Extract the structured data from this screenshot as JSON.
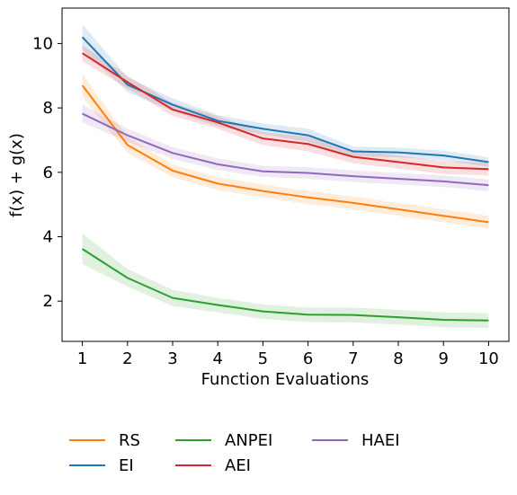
{
  "chart_data": {
    "type": "line",
    "xlabel": "Function Evaluations",
    "ylabel": "f(x) + g(x)",
    "xlim": [
      0.55,
      10.45
    ],
    "ylim": [
      0.75,
      11.1
    ],
    "x": [
      1,
      2,
      3,
      4,
      5,
      6,
      7,
      8,
      9,
      10
    ],
    "xticks": [
      1,
      2,
      3,
      4,
      5,
      6,
      7,
      8,
      9,
      10
    ],
    "yticks": [
      2,
      4,
      6,
      8,
      10
    ],
    "grid": false,
    "legend_position": "bottom",
    "series": [
      {
        "name": "RS",
        "color": "#ff7f0e",
        "values": [
          8.7,
          6.85,
          6.05,
          5.65,
          5.42,
          5.22,
          5.05,
          4.85,
          4.65,
          4.45
        ],
        "lower": [
          8.35,
          6.6,
          5.85,
          5.45,
          5.22,
          5.02,
          4.85,
          4.65,
          4.45,
          4.25
        ],
        "upper": [
          9.05,
          7.1,
          6.25,
          5.85,
          5.62,
          5.42,
          5.25,
          5.05,
          4.85,
          4.65
        ]
      },
      {
        "name": "EI",
        "color": "#1f77b4",
        "values": [
          10.2,
          8.72,
          8.1,
          7.6,
          7.35,
          7.15,
          6.65,
          6.62,
          6.52,
          6.32
        ],
        "lower": [
          9.8,
          8.5,
          7.9,
          7.42,
          7.18,
          6.95,
          6.5,
          6.47,
          6.37,
          6.17
        ],
        "upper": [
          10.6,
          8.95,
          8.3,
          7.78,
          7.52,
          7.35,
          6.8,
          6.77,
          6.67,
          6.47
        ]
      },
      {
        "name": "ANPEI",
        "color": "#2ca02c",
        "values": [
          3.62,
          2.72,
          2.1,
          1.88,
          1.68,
          1.58,
          1.57,
          1.5,
          1.42,
          1.4
        ],
        "lower": [
          3.15,
          2.45,
          1.85,
          1.65,
          1.45,
          1.35,
          1.34,
          1.27,
          1.19,
          1.17
        ],
        "upper": [
          4.1,
          3.0,
          2.35,
          2.1,
          1.9,
          1.8,
          1.8,
          1.73,
          1.65,
          1.63
        ]
      },
      {
        "name": "AEI",
        "color": "#d62728",
        "values": [
          9.7,
          8.8,
          7.95,
          7.55,
          7.05,
          6.88,
          6.48,
          6.32,
          6.15,
          6.1
        ],
        "lower": [
          9.45,
          8.6,
          7.75,
          7.35,
          6.85,
          6.65,
          6.28,
          6.12,
          5.95,
          5.9
        ],
        "upper": [
          9.95,
          9.0,
          8.15,
          7.75,
          7.25,
          7.1,
          6.68,
          6.52,
          6.35,
          6.3
        ]
      },
      {
        "name": "HAEI",
        "color": "#9467bd",
        "values": [
          7.82,
          7.15,
          6.6,
          6.25,
          6.03,
          5.98,
          5.88,
          5.8,
          5.72,
          5.6
        ],
        "lower": [
          7.55,
          6.95,
          6.42,
          6.07,
          5.86,
          5.8,
          5.7,
          5.62,
          5.54,
          5.42
        ],
        "upper": [
          8.1,
          7.35,
          6.78,
          6.43,
          6.2,
          6.16,
          6.06,
          5.98,
          5.9,
          5.78
        ]
      }
    ]
  }
}
